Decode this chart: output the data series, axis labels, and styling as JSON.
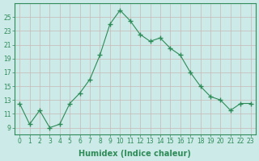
{
  "xlabel": "Humidex (Indice chaleur)",
  "ylabel": "",
  "x": [
    0,
    1,
    2,
    3,
    4,
    5,
    6,
    7,
    8,
    9,
    10,
    11,
    12,
    13,
    14,
    15,
    16,
    17,
    18,
    19,
    20,
    21,
    22,
    23
  ],
  "y": [
    12.5,
    9.5,
    11.5,
    9.0,
    9.5,
    12.5,
    14.0,
    16.0,
    19.5,
    24.0,
    26.0,
    24.5,
    22.5,
    21.5,
    22.0,
    20.5,
    19.5,
    17.0,
    15.0,
    13.5,
    13.0,
    11.5,
    12.5,
    12.5
  ],
  "line_color": "#2e8b57",
  "marker": "+",
  "marker_size": 4,
  "bg_color": "#cceae8",
  "grid_color": "#c8b8b8",
  "ylim": [
    8,
    27
  ],
  "yticks": [
    9,
    11,
    13,
    15,
    17,
    19,
    21,
    23,
    25
  ],
  "xlim": [
    -0.5,
    23.5
  ],
  "tick_fontsize": 5.5,
  "label_fontsize": 7
}
